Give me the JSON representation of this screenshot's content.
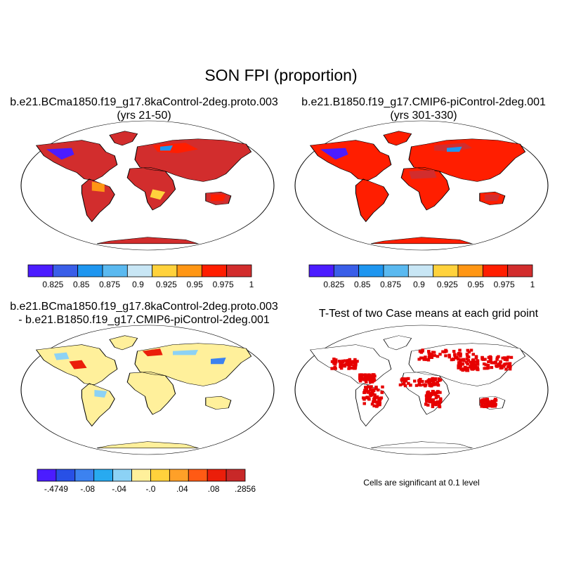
{
  "figure": {
    "title": "SON FPI (proportion)",
    "panels": [
      {
        "id": "case1",
        "title_line1": "b.e21.BCma1850.f19_g17.8kaControl-2deg.proto.003",
        "title_line2": "(yrs 21-50)"
      },
      {
        "id": "case2",
        "title_line1": "b.e21.B1850.f19_g17.CMIP6-piControl-2deg.001",
        "title_line2": "(yrs 301-330)"
      },
      {
        "id": "diff",
        "title_line1": "b.e21.BCma1850.f19_g17.8kaControl-2deg.proto.003",
        "title_line2": "- b.e21.B1850.f19_g17.CMIP6-piControl-2deg.001"
      },
      {
        "id": "ttest",
        "title_line1": "T-Test of two Case means at each grid point"
      }
    ],
    "significance_note": "Cells are significant at 0.1 level"
  },
  "colorbars": {
    "mean": {
      "colors": [
        "#4b1cff",
        "#3a5ee8",
        "#1e96f0",
        "#5ab9f0",
        "#c8e6f5",
        "#ffd23c",
        "#ff9614",
        "#ff1e00",
        "#d22d2d"
      ],
      "labels": [
        "0.825",
        "0.85",
        "0.875",
        "0.9",
        "0.925",
        "0.95",
        "0.975",
        "1"
      ]
    },
    "diff": {
      "colors": [
        "#4b1cff",
        "#2850e6",
        "#3c82f0",
        "#28aaf0",
        "#8cd2f5",
        "#fff09b",
        "#ffd23c",
        "#ffa028",
        "#ff5a14",
        "#eb1e0a",
        "#c82828"
      ],
      "labels": [
        "-.4749",
        "-.08",
        "-.04",
        "-.0",
        ".04",
        ".08",
        ".2856"
      ]
    },
    "ttest_color": "#e60000"
  }
}
